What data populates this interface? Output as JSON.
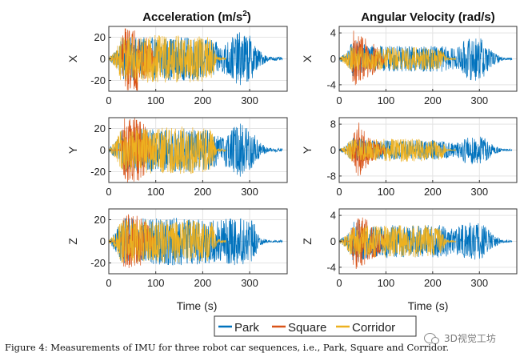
{
  "columns": [
    {
      "title_base": "Acceleration (m/s",
      "title_sup": "2",
      "title_tail": ")"
    },
    {
      "title_base": "Angular Velocity (rad/s)",
      "title_sup": "",
      "title_tail": ""
    }
  ],
  "xlabel": "Time (s)",
  "legend": [
    {
      "name": "Park",
      "color": "#0072BD"
    },
    {
      "name": "Square",
      "color": "#D95319"
    },
    {
      "name": "Corridor",
      "color": "#EDB120"
    }
  ],
  "caption": "Figure 4: Measurements of IMU for three robot car sequences, i.e., Park, Square and Corridor.",
  "watermark": "3D视觉工坊",
  "chart_data": [
    {
      "type": "line",
      "title": "Acceleration (m/s^2)",
      "ylabel": "X",
      "xlim": [
        0,
        380
      ],
      "ylim": [
        -30,
        30
      ],
      "xticks": [
        0,
        100,
        200,
        300
      ],
      "yticks": [
        -20,
        0,
        20
      ],
      "grid": true,
      "series": [
        {
          "name": "Park",
          "color": "#0072BD",
          "x": [
            0,
            15,
            30,
            70,
            120,
            180,
            220,
            240,
            260,
            280,
            300,
            320,
            340,
            370
          ],
          "amplitude": [
            1.5,
            8,
            20,
            20,
            20,
            20,
            18,
            12,
            20,
            25,
            22,
            8,
            2,
            1.5
          ]
        },
        {
          "name": "Square",
          "color": "#D95319",
          "x": [
            0,
            25,
            30,
            60,
            80,
            100
          ],
          "amplitude": [
            0.5,
            0.5,
            30,
            30,
            20,
            2
          ]
        },
        {
          "name": "Corridor",
          "color": "#EDB120",
          "x": [
            0,
            15,
            25,
            60,
            120,
            180,
            220,
            230,
            250
          ],
          "amplitude": [
            1,
            8,
            20,
            22,
            22,
            22,
            20,
            2,
            1
          ]
        }
      ]
    },
    {
      "type": "line",
      "title": "Angular Velocity (rad/s)",
      "ylabel": "X",
      "xlim": [
        0,
        380
      ],
      "ylim": [
        -5,
        5
      ],
      "xticks": [
        0,
        100,
        200,
        300
      ],
      "yticks": [
        -4,
        0,
        4
      ],
      "grid": true,
      "series": [
        {
          "name": "Park",
          "color": "#0072BD",
          "x": [
            0,
            15,
            30,
            70,
            120,
            180,
            220,
            250,
            270,
            290,
            310,
            330,
            350,
            370
          ],
          "amplitude": [
            0.2,
            1,
            3,
            2,
            2,
            2,
            2,
            1.5,
            3,
            3.5,
            3,
            1,
            0.2,
            0.2
          ]
        },
        {
          "name": "Square",
          "color": "#D95319",
          "x": [
            0,
            25,
            30,
            60,
            80,
            100
          ],
          "amplitude": [
            0.1,
            0.1,
            4.5,
            3,
            2,
            0.5
          ]
        },
        {
          "name": "Corridor",
          "color": "#EDB120",
          "x": [
            0,
            15,
            25,
            60,
            120,
            180,
            220,
            230,
            250
          ],
          "amplitude": [
            0.1,
            1,
            2,
            1.8,
            1.8,
            1.8,
            1.5,
            0.2,
            0.1
          ]
        }
      ]
    },
    {
      "type": "line",
      "title": "",
      "ylabel": "Y",
      "xlim": [
        0,
        380
      ],
      "ylim": [
        -30,
        30
      ],
      "xticks": [
        0,
        100,
        200,
        300
      ],
      "yticks": [
        -20,
        0,
        20
      ],
      "grid": true,
      "series": [
        {
          "name": "Park",
          "color": "#0072BD",
          "x": [
            0,
            15,
            30,
            70,
            120,
            180,
            220,
            240,
            260,
            280,
            300,
            320,
            340,
            370
          ],
          "amplitude": [
            1.5,
            8,
            20,
            20,
            20,
            20,
            18,
            12,
            20,
            25,
            22,
            8,
            2,
            1.5
          ]
        },
        {
          "name": "Square",
          "color": "#D95319",
          "x": [
            0,
            25,
            30,
            60,
            80,
            100
          ],
          "amplitude": [
            0.5,
            0.5,
            30,
            30,
            22,
            2
          ]
        },
        {
          "name": "Corridor",
          "color": "#EDB120",
          "x": [
            0,
            15,
            25,
            60,
            120,
            180,
            220,
            230,
            250
          ],
          "amplitude": [
            1,
            8,
            20,
            22,
            22,
            22,
            20,
            2,
            1
          ]
        }
      ]
    },
    {
      "type": "line",
      "title": "",
      "ylabel": "Y",
      "xlim": [
        0,
        380
      ],
      "ylim": [
        -10,
        10
      ],
      "xticks": [
        0,
        100,
        200,
        300
      ],
      "yticks": [
        -8,
        0,
        8
      ],
      "grid": true,
      "series": [
        {
          "name": "Park",
          "color": "#0072BD",
          "x": [
            0,
            15,
            30,
            70,
            120,
            180,
            220,
            250,
            270,
            290,
            310,
            330,
            350,
            370
          ],
          "amplitude": [
            0.3,
            1.5,
            4,
            3,
            3,
            3,
            3,
            2,
            4,
            5,
            4,
            1.5,
            0.3,
            0.3
          ]
        },
        {
          "name": "Square",
          "color": "#D95319",
          "x": [
            0,
            25,
            30,
            45,
            60,
            80,
            100
          ],
          "amplitude": [
            0.1,
            0.1,
            6,
            9,
            5,
            3,
            1
          ]
        },
        {
          "name": "Corridor",
          "color": "#EDB120",
          "x": [
            0,
            15,
            25,
            60,
            120,
            180,
            220,
            230,
            250
          ],
          "amplitude": [
            0.2,
            1.5,
            3.5,
            3.5,
            3.5,
            3.5,
            3,
            0.3,
            0.2
          ]
        }
      ]
    },
    {
      "type": "line",
      "title": "",
      "ylabel": "Z",
      "xlim": [
        0,
        380
      ],
      "ylim": [
        -30,
        30
      ],
      "xticks": [
        0,
        100,
        200,
        300
      ],
      "yticks": [
        -20,
        0,
        20
      ],
      "grid": true,
      "series": [
        {
          "name": "Park",
          "color": "#0072BD",
          "x": [
            0,
            15,
            30,
            100,
            200,
            220,
            240,
            260,
            280,
            300,
            310,
            320,
            340,
            370
          ],
          "amplitude": [
            1,
            10,
            22,
            22,
            22,
            20,
            20,
            22,
            22,
            20,
            18,
            4,
            1,
            1
          ]
        },
        {
          "name": "Square",
          "color": "#D95319",
          "x": [
            0,
            25,
            30,
            60,
            80,
            100
          ],
          "amplitude": [
            0.5,
            0.5,
            25,
            25,
            18,
            2
          ]
        },
        {
          "name": "Corridor",
          "color": "#EDB120",
          "x": [
            0,
            15,
            25,
            60,
            120,
            180,
            220,
            230,
            250
          ],
          "amplitude": [
            1,
            8,
            20,
            20,
            20,
            20,
            18,
            2,
            1
          ]
        }
      ]
    },
    {
      "type": "line",
      "title": "",
      "ylabel": "Z",
      "xlim": [
        0,
        380
      ],
      "ylim": [
        -5,
        5
      ],
      "xticks": [
        0,
        100,
        200,
        300
      ],
      "yticks": [
        -4,
        0,
        4
      ],
      "grid": true,
      "series": [
        {
          "name": "Park",
          "color": "#0072BD",
          "x": [
            0,
            15,
            30,
            70,
            120,
            180,
            220,
            250,
            270,
            290,
            310,
            330,
            350,
            370
          ],
          "amplitude": [
            0.2,
            1,
            3.5,
            2.5,
            2.5,
            2.5,
            2.5,
            2,
            3,
            3,
            2.5,
            1,
            0.2,
            0.2
          ]
        },
        {
          "name": "Square",
          "color": "#D95319",
          "x": [
            0,
            25,
            30,
            60,
            80,
            100
          ],
          "amplitude": [
            0.1,
            0.1,
            4.5,
            3.5,
            2.5,
            0.5
          ]
        },
        {
          "name": "Corridor",
          "color": "#EDB120",
          "x": [
            0,
            15,
            25,
            60,
            120,
            180,
            220,
            230,
            250
          ],
          "amplitude": [
            0.1,
            1,
            2.5,
            2.5,
            2.5,
            2.5,
            2,
            0.2,
            0.1
          ]
        }
      ]
    }
  ]
}
